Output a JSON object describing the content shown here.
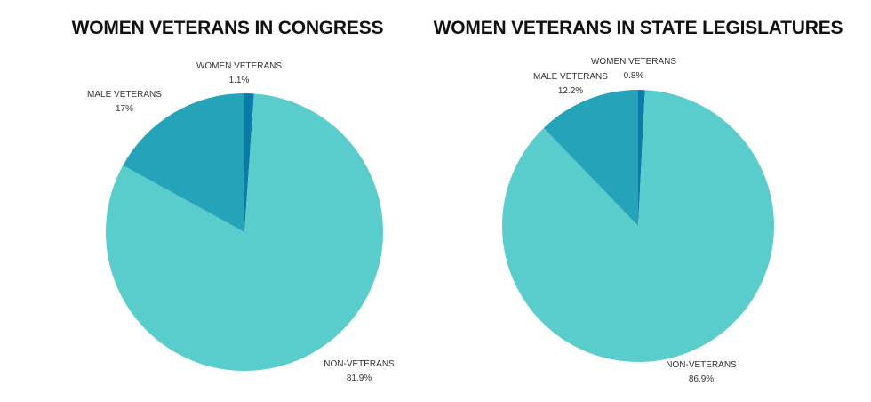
{
  "colors": {
    "non_veterans": "#59CDCB",
    "male_veterans": "#25A3B8",
    "women_veterans": "#0B7BAA",
    "background": "#FFFFFF",
    "text": "#111111"
  },
  "chart_data": [
    {
      "type": "pie",
      "title": "WOMEN VETERANS IN CONGRESS",
      "slices": [
        {
          "label": "WOMEN VETERANS",
          "value": 1.1,
          "value_text": "1.1%",
          "color_key": "women_veterans"
        },
        {
          "label": "NON-VETERANS",
          "value": 81.9,
          "value_text": "81.9%",
          "color_key": "non_veterans"
        },
        {
          "label": "MALE VETERANS",
          "value": 17,
          "value_text": "17%",
          "color_key": "male_veterans"
        }
      ]
    },
    {
      "type": "pie",
      "title": "WOMEN VETERANS IN STATE LEGISLATURES",
      "slices": [
        {
          "label": "WOMEN VETERANS",
          "value": 0.8,
          "value_text": "0.8%",
          "color_key": "women_veterans"
        },
        {
          "label": "NON-VETERANS",
          "value": 86.9,
          "value_text": "86.9%",
          "color_key": "non_veterans"
        },
        {
          "label": "MALE VETERANS",
          "value": 12.2,
          "value_text": "12.2%",
          "color_key": "male_veterans"
        }
      ]
    }
  ]
}
